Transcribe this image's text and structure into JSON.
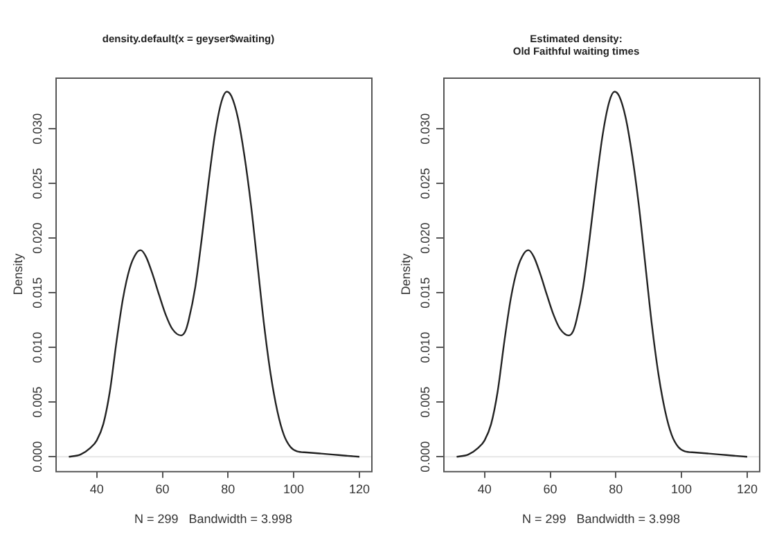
{
  "chart_data": [
    {
      "type": "line",
      "title": "density.default(x = geyser$waiting)",
      "xlabel": "N = 299   Bandwidth = 3.998",
      "ylabel": "Density",
      "x": [
        31.5,
        35,
        38,
        40,
        42,
        44,
        46,
        48,
        50,
        52,
        53.4,
        55,
        57,
        59,
        61,
        63,
        65.7,
        67,
        68,
        70,
        72,
        74,
        76,
        78,
        79.6,
        81,
        83,
        85,
        87,
        89,
        91,
        93,
        95,
        97,
        99,
        101,
        104,
        108,
        112,
        116,
        120
      ],
      "series": [
        {
          "color": "#222222",
          "values": [
            0.0,
            0.0002,
            0.0008,
            0.0015,
            0.003,
            0.006,
            0.0105,
            0.0145,
            0.0172,
            0.0186,
            0.0189,
            0.0183,
            0.0167,
            0.0148,
            0.013,
            0.0117,
            0.0111,
            0.0115,
            0.0125,
            0.0155,
            0.02,
            0.025,
            0.0295,
            0.0325,
            0.0334,
            0.033,
            0.031,
            0.0275,
            0.023,
            0.0175,
            0.012,
            0.0075,
            0.0042,
            0.002,
            0.0009,
            0.0005,
            0.0004,
            0.0003,
            0.0002,
            0.0001,
            0.0
          ]
        }
      ],
      "xlim": [
        27.4,
        123.6
      ],
      "ylim": [
        -0.0013,
        0.0347
      ],
      "xticks": [
        40,
        60,
        80,
        100,
        120
      ],
      "yticks": [
        {
          "value": 0,
          "label": "0.000"
        },
        {
          "value": 0.005,
          "label": "0.005"
        },
        {
          "value": 0.01,
          "label": "0.010"
        },
        {
          "value": 0.015,
          "label": "0.015"
        },
        {
          "value": 0.02,
          "label": "0.020"
        },
        {
          "value": 0.025,
          "label": "0.025"
        },
        {
          "value": 0.03,
          "label": "0.030"
        }
      ],
      "ref_lines": [
        {
          "axis": "y",
          "value": 0,
          "color": "#e6e6e6"
        }
      ],
      "legend": false,
      "marker": "none",
      "line_style": "solid",
      "grid": false
    },
    {
      "type": "line",
      "title": "Estimated density:\nOld Faithful waiting times",
      "xlabel": "N = 299   Bandwidth = 3.998",
      "ylabel": "Density",
      "x": [
        31.5,
        35,
        38,
        40,
        42,
        44,
        46,
        48,
        50,
        52,
        53.4,
        55,
        57,
        59,
        61,
        63,
        65.7,
        67,
        68,
        70,
        72,
        74,
        76,
        78,
        79.6,
        81,
        83,
        85,
        87,
        89,
        91,
        93,
        95,
        97,
        99,
        101,
        104,
        108,
        112,
        116,
        120
      ],
      "series": [
        {
          "color": "#222222",
          "values": [
            0.0,
            0.0002,
            0.0008,
            0.0015,
            0.003,
            0.006,
            0.0105,
            0.0145,
            0.0172,
            0.0186,
            0.0189,
            0.0183,
            0.0167,
            0.0148,
            0.013,
            0.0117,
            0.0111,
            0.0115,
            0.0125,
            0.0155,
            0.02,
            0.025,
            0.0295,
            0.0325,
            0.0334,
            0.033,
            0.031,
            0.0275,
            0.023,
            0.0175,
            0.012,
            0.0075,
            0.0042,
            0.002,
            0.0009,
            0.0005,
            0.0004,
            0.0003,
            0.0002,
            0.0001,
            0.0
          ]
        }
      ],
      "xlim": [
        27.4,
        123.6
      ],
      "ylim": [
        -0.0013,
        0.0347
      ],
      "xticks": [
        40,
        60,
        80,
        100,
        120
      ],
      "yticks": [
        {
          "value": 0,
          "label": "0.000"
        },
        {
          "value": 0.005,
          "label": "0.005"
        },
        {
          "value": 0.01,
          "label": "0.010"
        },
        {
          "value": 0.015,
          "label": "0.015"
        },
        {
          "value": 0.02,
          "label": "0.020"
        },
        {
          "value": 0.025,
          "label": "0.025"
        },
        {
          "value": 0.03,
          "label": "0.030"
        }
      ],
      "ref_lines": [
        {
          "axis": "y",
          "value": 0,
          "color": "#e6e6e6"
        }
      ],
      "legend": false,
      "marker": "none",
      "line_style": "solid",
      "grid": false
    }
  ]
}
